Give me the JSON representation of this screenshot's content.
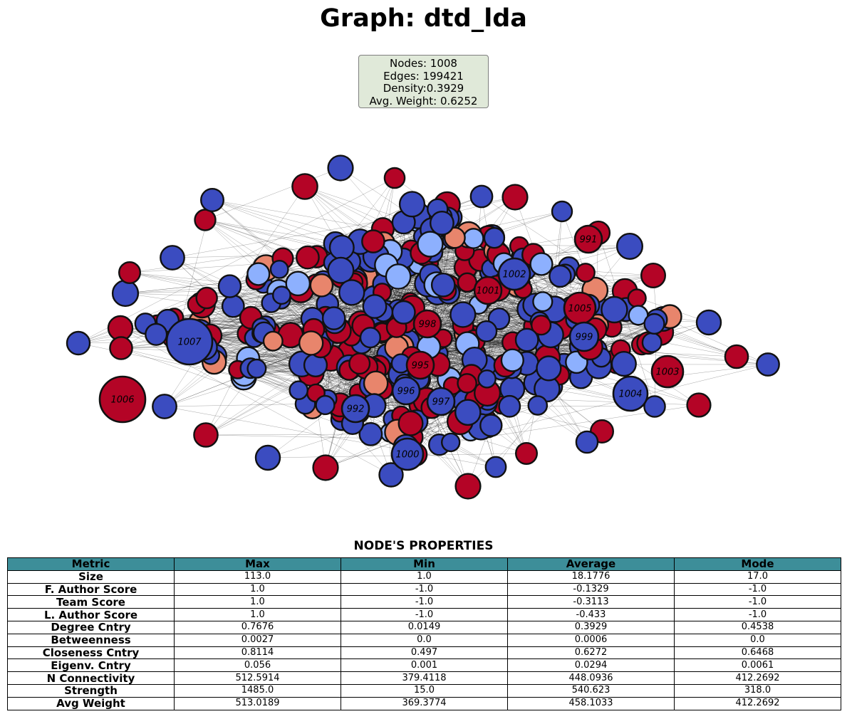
{
  "title": "Graph: dtd_lda",
  "stats": {
    "nodes": "Nodes: 1008",
    "edges": "Edges: 199421",
    "density": "Density:0.3929",
    "avg_weight": "Avg. Weight: 0.6252"
  },
  "graph": {
    "colors": {
      "dark_red": "#b40426",
      "light_red": "#e8856c",
      "dark_blue": "#3b4cc0",
      "light_blue": "#8db0fe",
      "node_border": "#111111",
      "edge": "#000000"
    },
    "labeled_nodes": [
      "991",
      "1002",
      "1001",
      "1005",
      "998",
      "999",
      "1007",
      "995",
      "1003",
      "996",
      "997",
      "1004",
      "992",
      "1006",
      "1000"
    ]
  },
  "table": {
    "title": "NODE'S PROPERTIES",
    "headers": [
      "Metric",
      "Max",
      "Min",
      "Average",
      "Mode"
    ],
    "rows": [
      [
        "Size",
        "113.0",
        "1.0",
        "18.1776",
        "17.0"
      ],
      [
        "F. Author Score",
        "1.0",
        "-1.0",
        "-0.1329",
        "-1.0"
      ],
      [
        "Team Score",
        "1.0",
        "-1.0",
        "-0.3113",
        "-1.0"
      ],
      [
        "L. Author Score",
        "1.0",
        "-1.0",
        "-0.433",
        "-1.0"
      ],
      [
        "Degree Cntry",
        "0.7676",
        "0.0149",
        "0.3929",
        "0.4538"
      ],
      [
        "Betweenness",
        "0.0027",
        "0.0",
        "0.0006",
        "0.0"
      ],
      [
        "Closeness Cntry",
        "0.8114",
        "0.497",
        "0.6272",
        "0.6468"
      ],
      [
        "Eigenv. Cntry",
        "0.056",
        "0.001",
        "0.0294",
        "0.0061"
      ],
      [
        "N Connectivity",
        "512.5914",
        "379.4118",
        "448.0936",
        "412.2692"
      ],
      [
        "Strength",
        "1485.0",
        "15.0",
        "540.623",
        "318.0"
      ],
      [
        "Avg Weight",
        "513.0189",
        "369.3774",
        "458.1033",
        "412.2692"
      ]
    ]
  }
}
